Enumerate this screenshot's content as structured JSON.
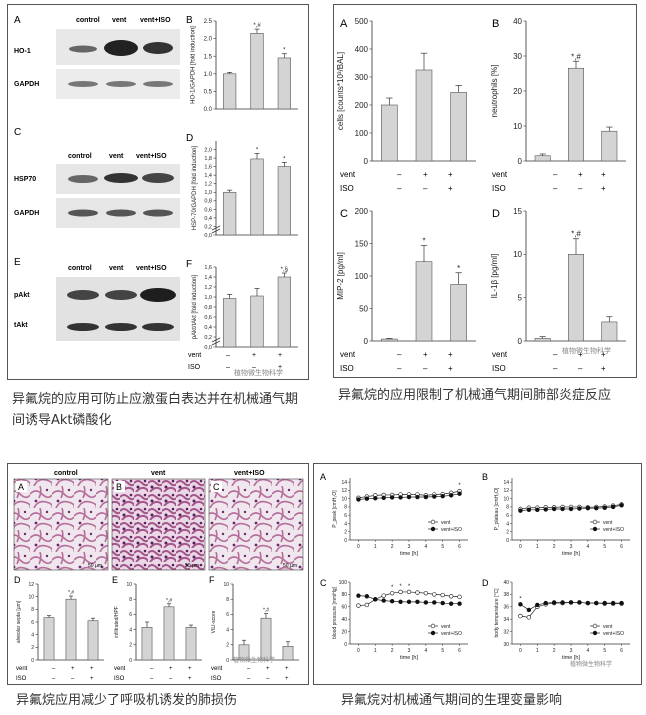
{
  "captions": {
    "fig1": "异氟烷的应用可防止应激蛋白表达并在机械通气期间诱导Akt磷酸化",
    "fig2": "异氟烷的应用限制了机械通气期间肺部炎症反应",
    "fig3": "异氟烷应用减少了呼吸机诱发的肺损伤",
    "fig4": "异氟烷对机械通气期间的生理变量影响"
  },
  "watermark": "植物微生物科学",
  "fig1": {
    "blot_headers": [
      "control",
      "vent",
      "vent+ISO"
    ],
    "blots": [
      {
        "panel": "A",
        "rows": [
          "HO-1",
          "GAPDH"
        ]
      },
      {
        "panel": "C",
        "rows": [
          "HSP70",
          "GAPDH"
        ]
      },
      {
        "panel": "E",
        "rows": [
          "pAkt",
          "tAkt"
        ]
      }
    ],
    "condition_rows": [
      "vent",
      "ISO"
    ],
    "condition_marks": [
      [
        "–",
        "+",
        "+"
      ],
      [
        "–",
        "–",
        "+"
      ]
    ]
  },
  "fig2": {
    "condition_rows": [
      "vent",
      "ISO"
    ],
    "condition_marks": [
      [
        "–",
        "+",
        "+"
      ],
      [
        "–",
        "–",
        "+"
      ]
    ]
  },
  "fig3": {
    "image_labels": [
      "control",
      "vent",
      "vent+ISO"
    ],
    "image_panels": [
      "A",
      "B",
      "C"
    ],
    "scale": "50 µm",
    "condition_rows": [
      "vent",
      "ISO"
    ],
    "condition_marks": [
      [
        "–",
        "+",
        "+"
      ],
      [
        "–",
        "–",
        "+"
      ]
    ]
  },
  "fig4": {
    "legend": [
      "vent",
      "vent+ISO"
    ],
    "xlabel": "time [h]",
    "xticks": [
      "0",
      "1",
      "2",
      "3",
      "4",
      "5",
      "6"
    ]
  },
  "chart_data": [
    {
      "id": "f1B",
      "panel": "B",
      "type": "bar",
      "ylabel": "HO-1/GAPDH [fold induction]",
      "ylim": [
        0,
        2.5
      ],
      "yticks": [
        0.0,
        0.5,
        1.0,
        1.5,
        2.0,
        2.5
      ],
      "values": [
        1.0,
        2.15,
        1.45
      ],
      "errors": [
        0.04,
        0.12,
        0.12
      ],
      "annotations": [
        "",
        "*,#",
        "*"
      ]
    },
    {
      "id": "f1D",
      "panel": "D",
      "type": "bar",
      "ylabel": "HSP-70/GAPDH [fold induction]",
      "ylim": [
        0,
        2.2
      ],
      "yticks": [
        0.0,
        0.2,
        0.4,
        0.6,
        0.8,
        1.0,
        1.2,
        1.4,
        1.6,
        1.8,
        2.0
      ],
      "axis_break": true,
      "values": [
        1.0,
        1.78,
        1.6
      ],
      "errors": [
        0.05,
        0.13,
        0.1
      ],
      "annotations": [
        "",
        "*",
        "*"
      ]
    },
    {
      "id": "f1F",
      "panel": "F",
      "type": "bar",
      "ylabel": "pAkt/tAkt [fold induction]",
      "ylim": [
        0,
        1.6
      ],
      "yticks": [
        0.0,
        0.2,
        0.4,
        0.6,
        0.8,
        1.0,
        1.2,
        1.4,
        1.6
      ],
      "axis_break": true,
      "values": [
        0.97,
        1.02,
        1.4
      ],
      "errors": [
        0.08,
        0.15,
        0.08
      ],
      "annotations": [
        "",
        "",
        "*,§"
      ]
    },
    {
      "id": "f2A",
      "panel": "A",
      "type": "bar",
      "ylabel": "cells [counts*10³/BAL]",
      "ylim": [
        0,
        500
      ],
      "yticks": [
        0,
        100,
        200,
        300,
        400,
        500
      ],
      "values": [
        200,
        325,
        245
      ],
      "errors": [
        25,
        60,
        25
      ],
      "annotations": [
        "",
        "",
        ""
      ]
    },
    {
      "id": "f2B",
      "panel": "B",
      "type": "bar",
      "ylabel": "neutrophils [%]",
      "ylim": [
        0,
        40
      ],
      "yticks": [
        0,
        10,
        20,
        30,
        40
      ],
      "values": [
        1.5,
        26.5,
        8.5
      ],
      "errors": [
        0.5,
        2.0,
        1.2
      ],
      "annotations": [
        "",
        "*,#",
        ""
      ]
    },
    {
      "id": "f2C",
      "panel": "C",
      "type": "bar",
      "ylabel": "MIP-2 [pg/ml]",
      "ylim": [
        0,
        200
      ],
      "yticks": [
        0,
        50,
        100,
        150,
        200
      ],
      "values": [
        3,
        122,
        87
      ],
      "errors": [
        1,
        25,
        18
      ],
      "annotations": [
        "",
        "*",
        "*"
      ]
    },
    {
      "id": "f2D",
      "panel": "D",
      "type": "bar",
      "ylabel": "IL-1β [pg/ml]",
      "ylim": [
        0,
        15
      ],
      "yticks": [
        0,
        5,
        10,
        15
      ],
      "values": [
        0.3,
        10,
        2.2
      ],
      "errors": [
        0.2,
        1.8,
        0.6
      ],
      "annotations": [
        "",
        "*,#",
        ""
      ]
    },
    {
      "id": "f3D",
      "panel": "D",
      "type": "bar",
      "ylabel": "alveolar septa [µm]",
      "ylim": [
        0,
        12
      ],
      "yticks": [
        0,
        2,
        4,
        6,
        8,
        10,
        12
      ],
      "values": [
        6.7,
        9.6,
        6.2
      ],
      "errors": [
        0.3,
        0.5,
        0.4
      ],
      "annotations": [
        "",
        "*,#",
        ""
      ]
    },
    {
      "id": "f3E",
      "panel": "E",
      "type": "bar",
      "ylabel": "infiltrated/HPF",
      "ylim": [
        0,
        10
      ],
      "yticks": [
        0,
        2,
        4,
        6,
        8,
        10
      ],
      "values": [
        4.3,
        7.0,
        4.3
      ],
      "errors": [
        0.7,
        0.4,
        0.3
      ],
      "annotations": [
        "",
        "*,#",
        ""
      ]
    },
    {
      "id": "f3F",
      "panel": "F",
      "type": "bar",
      "ylabel": "VILI-score",
      "ylim": [
        0,
        10
      ],
      "yticks": [
        0,
        2,
        4,
        6,
        8,
        10
      ],
      "values": [
        2.0,
        5.5,
        1.8
      ],
      "errors": [
        0.6,
        0.6,
        0.6
      ],
      "annotations": [
        "",
        "*,#",
        ""
      ]
    },
    {
      "id": "f4A",
      "panel": "A",
      "type": "line",
      "ylabel": "P_peak [cmH₂O]",
      "ylim": [
        0,
        15
      ],
      "yticks": [
        0,
        2,
        4,
        6,
        8,
        10,
        12,
        14
      ],
      "x": [
        0,
        0.5,
        1,
        1.5,
        2,
        2.5,
        3,
        3.5,
        4,
        4.5,
        5,
        5.5,
        6
      ],
      "series": [
        {
          "name": "vent",
          "values": [
            10.2,
            10.5,
            10.8,
            10.9,
            10.9,
            11.0,
            11.0,
            11.0,
            10.8,
            11.0,
            11.1,
            11.4,
            11.8
          ]
        },
        {
          "name": "vent+ISO",
          "values": [
            9.8,
            10.0,
            10.1,
            10.2,
            10.3,
            10.3,
            10.4,
            10.4,
            10.4,
            10.5,
            10.6,
            10.8,
            11.2
          ]
        }
      ],
      "annotations": [
        "*"
      ]
    },
    {
      "id": "f4B",
      "panel": "B",
      "type": "line",
      "ylabel": "P_plateau [cmH₂O]",
      "ylim": [
        0,
        15
      ],
      "yticks": [
        0,
        2,
        4,
        6,
        8,
        10,
        12,
        14
      ],
      "x": [
        0,
        0.5,
        1,
        1.5,
        2,
        2.5,
        3,
        3.5,
        4,
        4.5,
        5,
        5.5,
        6
      ],
      "series": [
        {
          "name": "vent",
          "values": [
            7.5,
            7.8,
            7.8,
            7.9,
            7.9,
            8.0,
            8.0,
            8.0,
            7.9,
            8.0,
            8.1,
            8.3,
            8.6
          ]
        },
        {
          "name": "vent+ISO",
          "values": [
            7.1,
            7.3,
            7.3,
            7.4,
            7.5,
            7.5,
            7.5,
            7.6,
            7.7,
            7.7,
            7.8,
            8.0,
            8.4
          ]
        }
      ]
    },
    {
      "id": "f4C",
      "panel": "C",
      "type": "line",
      "ylabel": "blood pressure [mmHg]",
      "ylim": [
        0,
        100
      ],
      "yticks": [
        0,
        20,
        40,
        60,
        80,
        100
      ],
      "x": [
        0,
        0.5,
        1,
        1.5,
        2,
        2.5,
        3,
        3.5,
        4,
        4.5,
        5,
        5.5,
        6
      ],
      "series": [
        {
          "name": "vent",
          "values": [
            62,
            63,
            72,
            78,
            82,
            84,
            84,
            83,
            82,
            80,
            79,
            77,
            76
          ]
        },
        {
          "name": "vent+ISO",
          "values": [
            78,
            77,
            72,
            70,
            69,
            68,
            68,
            68,
            67,
            67,
            66,
            65,
            65
          ]
        }
      ],
      "annotations": [
        "*",
        "*",
        "*"
      ]
    },
    {
      "id": "f4D",
      "panel": "D",
      "type": "line",
      "ylabel": "body temperature [°C]",
      "ylim": [
        30,
        40
      ],
      "yticks": [
        30,
        32,
        34,
        36,
        38,
        40
      ],
      "x": [
        0,
        0.5,
        1,
        1.5,
        2,
        2.5,
        3,
        3.5,
        4,
        4.5,
        5,
        5.5,
        6
      ],
      "series": [
        {
          "name": "vent",
          "values": [
            34.5,
            34.3,
            36.0,
            36.4,
            36.6,
            36.6,
            36.7,
            36.7,
            36.6,
            36.6,
            36.5,
            36.5,
            36.5
          ]
        },
        {
          "name": "vent+ISO",
          "values": [
            36.4,
            35.5,
            36.3,
            36.6,
            36.7,
            36.7,
            36.7,
            36.7,
            36.6,
            36.6,
            36.6,
            36.6,
            36.6
          ]
        }
      ],
      "annotations": [
        "*"
      ]
    }
  ]
}
